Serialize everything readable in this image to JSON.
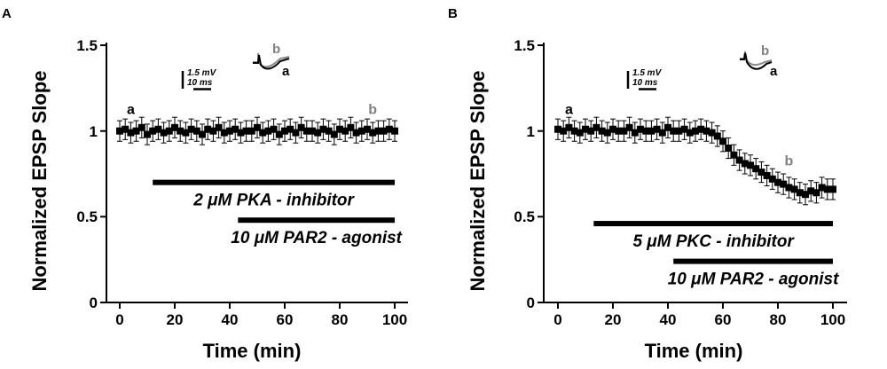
{
  "chart_data": [
    {
      "type": "scatter",
      "panel_label": "A",
      "xlabel": "Time (min)",
      "ylabel": "Normalized EPSP Slope",
      "xlim": [
        -5,
        105
      ],
      "ylim": [
        0,
        1.5
      ],
      "xticks": [
        "0",
        "20",
        "40",
        "60",
        "80",
        "100"
      ],
      "yticks": [
        "0",
        "0.5",
        "1",
        "1.5"
      ],
      "series": [
        {
          "x": [
            0,
            2,
            4,
            6,
            8,
            10,
            12,
            14,
            16,
            18,
            20,
            22,
            24,
            26,
            28,
            30,
            32,
            34,
            36,
            38,
            40,
            42,
            44,
            46,
            48,
            50,
            52,
            54,
            56,
            58,
            60,
            62,
            64,
            66,
            68,
            70,
            72,
            74,
            76,
            78,
            80,
            82,
            84,
            86,
            88,
            90,
            92,
            94,
            96,
            98,
            100
          ],
          "y": [
            1.0,
            1.01,
            0.99,
            1.0,
            1.02,
            0.98,
            1.0,
            1.01,
            0.99,
            1.0,
            1.02,
            1.0,
            0.99,
            1.01,
            1.0,
            0.98,
            1.01,
            1.0,
            1.02,
            0.99,
            1.0,
            1.01,
            0.99,
            1.0,
            1.0,
            1.02,
            0.99,
            1.0,
            1.01,
            0.98,
            1.0,
            1.01,
            0.99,
            1.02,
            1.0,
            1.0,
            0.99,
            1.01,
            1.0,
            0.98,
            1.01,
            1.0,
            1.02,
            0.99,
            1.0,
            1.01,
            0.99,
            1.0,
            1.0,
            1.01,
            1.0
          ],
          "error": 0.06
        }
      ],
      "point_labels": [
        {
          "text": "a",
          "x": 4,
          "y": 1.1,
          "color": "#000000"
        },
        {
          "text": "b",
          "x": 92,
          "y": 1.1,
          "color": "#808080"
        }
      ],
      "drug_bars": [
        {
          "label": "2 μM PKA - inhibitor",
          "start": 12,
          "end": 100,
          "y": 0.7
        },
        {
          "label": "10 μM PAR2 - agonist",
          "start": 43,
          "end": 100,
          "y": 0.48
        }
      ],
      "scale_bar": {
        "voltage": "1.5 mV",
        "time": "10 ms"
      },
      "trace_labels": [
        {
          "text": "b",
          "color": "#808080"
        },
        {
          "text": "a",
          "color": "#000000"
        }
      ]
    },
    {
      "type": "scatter",
      "panel_label": "B",
      "xlabel": "Time (min)",
      "ylabel": "Normalized EPSP Slope",
      "xlim": [
        -5,
        105
      ],
      "ylim": [
        0,
        1.5
      ],
      "xticks": [
        "0",
        "20",
        "40",
        "60",
        "80",
        "100"
      ],
      "yticks": [
        "0",
        "0.5",
        "1",
        "1.5"
      ],
      "series": [
        {
          "x": [
            0,
            2,
            4,
            6,
            8,
            10,
            12,
            14,
            16,
            18,
            20,
            22,
            24,
            26,
            28,
            30,
            32,
            34,
            36,
            38,
            40,
            42,
            44,
            46,
            48,
            50,
            52,
            54,
            56,
            58,
            60,
            62,
            64,
            66,
            68,
            70,
            72,
            74,
            76,
            78,
            80,
            82,
            84,
            86,
            88,
            90,
            92,
            94,
            96,
            98,
            100
          ],
          "y": [
            1.01,
            1.0,
            1.02,
            1.0,
            0.99,
            1.01,
            1.0,
            1.02,
            1.0,
            0.99,
            1.01,
            1.0,
            1.0,
            1.02,
            0.99,
            1.01,
            1.0,
            1.0,
            1.01,
            0.99,
            1.02,
            1.0,
            1.0,
            1.01,
            0.99,
            1.0,
            1.01,
            1.0,
            0.99,
            0.97,
            0.94,
            0.9,
            0.86,
            0.83,
            0.81,
            0.8,
            0.78,
            0.76,
            0.74,
            0.72,
            0.7,
            0.69,
            0.67,
            0.66,
            0.64,
            0.63,
            0.65,
            0.64,
            0.67,
            0.66,
            0.66
          ],
          "error": 0.06
        }
      ],
      "point_labels": [
        {
          "text": "a",
          "x": 4,
          "y": 1.1,
          "color": "#000000"
        },
        {
          "text": "b",
          "x": 84,
          "y": 0.8,
          "color": "#808080"
        }
      ],
      "drug_bars": [
        {
          "label": "5 μM PKC - inhibitor",
          "start": 13,
          "end": 100,
          "y": 0.46
        },
        {
          "label": "10 μM PAR2 - agonist",
          "start": 42,
          "end": 100,
          "y": 0.24
        }
      ],
      "scale_bar": {
        "voltage": "1.5 mV",
        "time": "10 ms"
      },
      "trace_labels": [
        {
          "text": "b",
          "color": "#808080"
        },
        {
          "text": "a",
          "color": "#000000"
        }
      ]
    }
  ]
}
